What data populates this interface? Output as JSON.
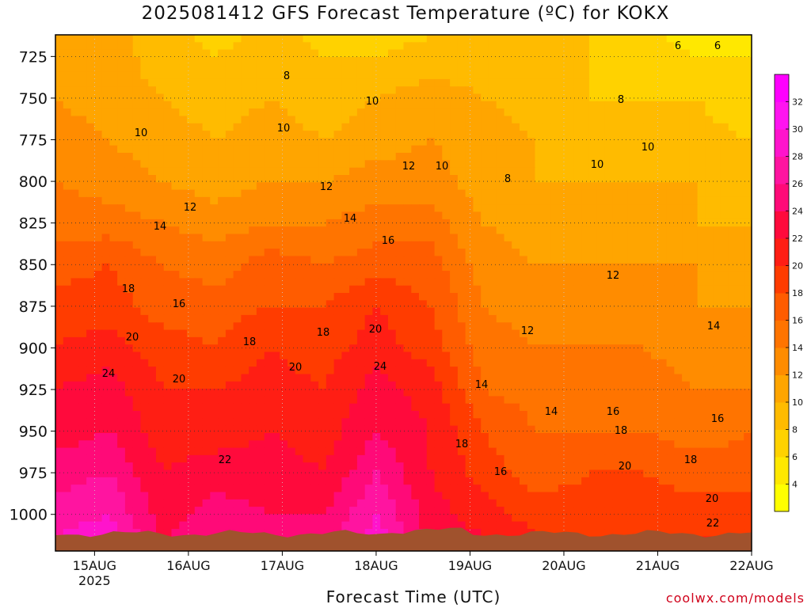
{
  "title": "2025081412 GFS Forecast Temperature (ºC) for KOKX",
  "xlabel": "Forecast Time (UTC)",
  "credit": "coolwx.com/models",
  "chart_data": {
    "type": "heatmap",
    "title": "2025081412 GFS Forecast Temperature (ºC) for KOKX",
    "xlabel": "Forecast Time (UTC)",
    "ylabel": "",
    "x_ticks": [
      {
        "label": "15AUG",
        "sublabel": "2025",
        "hours": 10
      },
      {
        "label": "16AUG",
        "sublabel": "",
        "hours": 34
      },
      {
        "label": "17AUG",
        "sublabel": "",
        "hours": 58
      },
      {
        "label": "18AUG",
        "sublabel": "",
        "hours": 82
      },
      {
        "label": "19AUG",
        "sublabel": "",
        "hours": 106
      },
      {
        "label": "20AUG",
        "sublabel": "",
        "hours": 130
      },
      {
        "label": "21AUG",
        "sublabel": "",
        "hours": 154
      },
      {
        "label": "22AUG",
        "sublabel": "",
        "hours": 178
      }
    ],
    "xlim_hours": [
      0,
      178
    ],
    "y_ticks": [
      "725",
      "750",
      "775",
      "800",
      "825",
      "850",
      "875",
      "900",
      "925",
      "950",
      "975",
      "1000"
    ],
    "ylim_hpa": [
      712,
      1022
    ],
    "inverted_y": true,
    "colorbar": {
      "labels": [
        "4",
        "6",
        "8",
        "10",
        "12",
        "14",
        "16",
        "18",
        "20",
        "22",
        "24",
        "26",
        "28",
        "30",
        "32"
      ],
      "colors": [
        "#ffff00",
        "#ffe800",
        "#ffd200",
        "#ffbb00",
        "#ffa500",
        "#ff8c00",
        "#ff7400",
        "#ff5c00",
        "#ff3c00",
        "#ff1e14",
        "#ff0a3c",
        "#ff0a78",
        "#ff14a0",
        "#ff14cc",
        "#ff14f0",
        "#ff00ff"
      ]
    },
    "contour_labels": [
      "6",
      "8",
      "10",
      "12",
      "14",
      "16",
      "18",
      "20",
      "22",
      "24"
    ],
    "series": [
      {
        "name": "725",
        "values": [
          11,
          11,
          9,
          8,
          9,
          8,
          8,
          9,
          9,
          9,
          8,
          7,
          6,
          6
        ]
      },
      {
        "name": "750",
        "values": [
          12,
          11,
          10,
          9,
          10,
          9,
          10,
          11,
          10,
          9,
          8,
          8,
          8,
          6
        ]
      },
      {
        "name": "775",
        "values": [
          13,
          12,
          11,
          10,
          11,
          10,
          11,
          12,
          11,
          10,
          9,
          9,
          9,
          8
        ]
      },
      {
        "name": "800",
        "values": [
          14,
          13,
          12,
          11,
          12,
          12,
          13,
          13,
          11,
          10,
          10,
          10,
          10,
          9
        ]
      },
      {
        "name": "825",
        "values": [
          15,
          15,
          14,
          13,
          14,
          14,
          15,
          15,
          12,
          11,
          10,
          11,
          10,
          10
        ]
      },
      {
        "name": "850",
        "values": [
          17,
          18,
          16,
          15,
          17,
          16,
          17,
          17,
          13,
          12,
          12,
          12,
          12,
          11
        ]
      },
      {
        "name": "875",
        "values": [
          19,
          19,
          17,
          17,
          18,
          18,
          20,
          18,
          14,
          13,
          13,
          13,
          12,
          12
        ]
      },
      {
        "name": "900",
        "values": [
          20,
          21,
          19,
          18,
          20,
          19,
          21,
          19,
          15,
          14,
          14,
          14,
          13,
          13
        ]
      },
      {
        "name": "925",
        "values": [
          22,
          23,
          20,
          20,
          21,
          20,
          23,
          21,
          16,
          15,
          15,
          15,
          14,
          14
        ]
      },
      {
        "name": "950",
        "values": [
          23,
          24,
          21,
          21,
          22,
          21,
          24,
          22,
          18,
          16,
          16,
          16,
          15,
          16
        ]
      },
      {
        "name": "975",
        "values": [
          25,
          26,
          22,
          23,
          23,
          22,
          26,
          22,
          19,
          17,
          18,
          18,
          17,
          17
        ]
      },
      {
        "name": "1000",
        "values": [
          27,
          28,
          23,
          25,
          24,
          24,
          28,
          23,
          21,
          19,
          19,
          19,
          19,
          19
        ]
      }
    ]
  }
}
